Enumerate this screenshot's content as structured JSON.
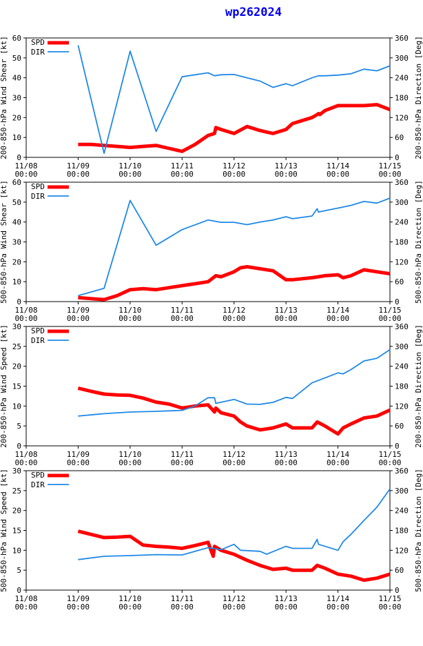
{
  "title": "wp262024",
  "colors": {
    "spd": "#ff0000",
    "dir": "#1e88e5",
    "axis": "#000000",
    "title": "#0000ee"
  },
  "time_ticks": [
    "11/08\n00:00",
    "11/09\n00:00",
    "11/10\n00:00",
    "11/11\n00:00",
    "11/12\n00:00",
    "11/13\n00:00",
    "11/14\n00:00",
    "11/15\n00:00"
  ],
  "legend": {
    "spd": "SPD",
    "dir": "DIR"
  },
  "chart_data": [
    {
      "type": "line",
      "title": "wp262024",
      "x_unit": "days since 11/08 00:00",
      "xlim": [
        0,
        7
      ],
      "ylabel_left": "200-850-hPa Wind Shear [kt]",
      "ylabel_right": "200-850-hPa Direction [Deg]",
      "ylim_left": [
        0,
        60
      ],
      "yticks_left": [
        0,
        10,
        20,
        30,
        40,
        50,
        60
      ],
      "ylim_right": [
        0,
        360
      ],
      "yticks_right": [
        0,
        60,
        120,
        180,
        240,
        300,
        360
      ],
      "series": [
        {
          "name": "SPD",
          "axis": "left",
          "x": [
            1.0,
            1.25,
            1.5,
            1.75,
            2.0,
            2.25,
            2.5,
            2.75,
            3.0,
            3.25,
            3.5,
            3.625,
            3.65,
            3.75,
            4.0,
            4.25,
            4.5,
            4.75,
            5.0,
            5.125,
            5.5,
            5.6,
            5.625,
            5.65,
            5.75,
            6.0,
            6.25,
            6.5,
            6.75,
            7.0
          ],
          "y": [
            6.5,
            6.5,
            6,
            5.5,
            5,
            5.5,
            6,
            4.5,
            3,
            6.5,
            11,
            12,
            15,
            14,
            12,
            15.5,
            13.5,
            12,
            14,
            17,
            20,
            21.5,
            22,
            21.5,
            23.5,
            26,
            26,
            26,
            26.5,
            24
          ]
        },
        {
          "name": "DIR",
          "axis": "right",
          "x": [
            1.0,
            1.5,
            2.0,
            2.5,
            3.0,
            3.5,
            3.625,
            3.75,
            4.0,
            4.25,
            4.5,
            4.75,
            5.0,
            5.125,
            5.5,
            5.625,
            5.75,
            6.0,
            6.25,
            6.5,
            6.75,
            7.0
          ],
          "y": [
            338,
            12,
            320,
            78,
            243,
            255,
            246,
            249,
            250,
            240,
            230,
            211,
            222,
            216,
            240,
            246,
            246,
            248,
            252,
            266,
            261,
            276
          ]
        }
      ]
    },
    {
      "type": "line",
      "x_unit": "days since 11/08 00:00",
      "xlim": [
        0,
        7
      ],
      "ylabel_left": "500-850-hPa Wind Shear [kt]",
      "ylabel_right": "500-850-hPa Direction [Deg]",
      "ylim_left": [
        0,
        60
      ],
      "yticks_left": [
        0,
        10,
        20,
        30,
        40,
        50,
        60
      ],
      "ylim_right": [
        0,
        360
      ],
      "yticks_right": [
        0,
        60,
        120,
        180,
        240,
        300,
        360
      ],
      "series": [
        {
          "name": "SPD",
          "axis": "left",
          "x": [
            1.0,
            1.25,
            1.5,
            1.75,
            2.0,
            2.25,
            2.5,
            2.75,
            3.0,
            3.25,
            3.5,
            3.625,
            3.65,
            3.75,
            4.0,
            4.125,
            4.25,
            4.5,
            4.75,
            5.0,
            5.125,
            5.5,
            5.625,
            5.75,
            6.0,
            6.1,
            6.25,
            6.5,
            6.75,
            7.0
          ],
          "y": [
            2,
            1.5,
            1,
            3,
            6,
            6.5,
            6,
            7,
            8,
            9,
            10,
            12.5,
            13,
            12.5,
            15,
            17,
            17.5,
            16.5,
            15.5,
            11,
            11,
            12,
            12.5,
            13,
            13.5,
            12,
            13,
            16,
            15,
            14
          ]
        },
        {
          "name": "DIR",
          "axis": "right",
          "x": [
            1.0,
            1.5,
            2.0,
            2.5,
            3.0,
            3.5,
            3.75,
            4.0,
            4.25,
            4.5,
            4.75,
            5.0,
            5.125,
            5.5,
            5.6,
            5.625,
            5.75,
            6.0,
            6.25,
            6.5,
            6.75,
            7.0
          ],
          "y": [
            18,
            40,
            305,
            170,
            217,
            246,
            239,
            239,
            232,
            240,
            246,
            256,
            250,
            258,
            280,
            270,
            274,
            282,
            290,
            302,
            297,
            312
          ]
        }
      ]
    },
    {
      "type": "line",
      "x_unit": "days since 11/08 00:00",
      "xlim": [
        0,
        7
      ],
      "ylabel_left": "200-850-hPa Wind Speed [kt]",
      "ylabel_right": "200-850-hPa Direction [Deg]",
      "ylim_left": [
        0,
        30
      ],
      "yticks_left": [
        0,
        5,
        10,
        15,
        20,
        25,
        30
      ],
      "ylim_right": [
        0,
        360
      ],
      "yticks_right": [
        0,
        60,
        120,
        180,
        240,
        300,
        360
      ],
      "series": [
        {
          "name": "SPD",
          "axis": "left",
          "x": [
            1.0,
            1.25,
            1.5,
            1.75,
            2.0,
            2.25,
            2.5,
            2.75,
            3.0,
            3.25,
            3.5,
            3.625,
            3.65,
            3.75,
            4.0,
            4.125,
            4.25,
            4.5,
            4.75,
            5.0,
            5.125,
            5.5,
            5.6,
            5.75,
            6.0,
            6.1,
            6.25,
            6.5,
            6.75,
            7.0
          ],
          "y": [
            14.5,
            13.7,
            13,
            12.8,
            12.7,
            12,
            11,
            10.5,
            9.5,
            10,
            10.3,
            8.5,
            9.5,
            8.3,
            7.5,
            6,
            5,
            4,
            4.5,
            5.5,
            4.5,
            4.5,
            6,
            5,
            3,
            4.5,
            5.5,
            7,
            7.5,
            9
          ]
        },
        {
          "name": "DIR",
          "axis": "right",
          "x": [
            1.0,
            1.5,
            2.0,
            2.5,
            3.0,
            3.25,
            3.5,
            3.625,
            3.65,
            4.0,
            4.25,
            4.5,
            4.75,
            5.0,
            5.125,
            5.5,
            6.0,
            6.1,
            6.25,
            6.5,
            6.75,
            7.0
          ],
          "y": [
            90,
            97,
            102,
            104,
            107,
            120,
            145,
            145,
            128,
            140,
            126,
            125,
            131,
            146,
            143,
            190,
            220,
            217,
            230,
            256,
            264,
            290
          ]
        }
      ]
    },
    {
      "type": "line",
      "x_unit": "days since 11/08 00:00",
      "xlim": [
        0,
        7
      ],
      "ylabel_left": "500-850-hPa Wind Speed [kt]",
      "ylabel_right": "500-850-hPa Direction [Deg]",
      "ylim_left": [
        0,
        30
      ],
      "yticks_left": [
        0,
        5,
        10,
        15,
        20,
        25,
        30
      ],
      "ylim_right": [
        0,
        360
      ],
      "yticks_right": [
        0,
        60,
        120,
        180,
        240,
        300,
        360
      ],
      "series": [
        {
          "name": "SPD",
          "axis": "left",
          "x": [
            1.0,
            1.25,
            1.5,
            1.75,
            2.0,
            2.25,
            2.5,
            2.75,
            3.0,
            3.25,
            3.5,
            3.6,
            3.625,
            3.75,
            4.0,
            4.25,
            4.5,
            4.75,
            5.0,
            5.125,
            5.5,
            5.6,
            5.75,
            6.0,
            6.25,
            6.5,
            6.75,
            7.0
          ],
          "y": [
            14.8,
            14,
            13.2,
            13.3,
            13.5,
            11.3,
            11,
            10.8,
            10.5,
            11.2,
            12,
            8.5,
            11,
            10,
            9,
            7.5,
            6.2,
            5.2,
            5.5,
            5,
            5,
            6.2,
            5.5,
            4,
            3.5,
            2.5,
            3,
            4
          ]
        },
        {
          "name": "DIR",
          "axis": "right",
          "x": [
            1.0,
            1.5,
            2.0,
            2.5,
            3.0,
            3.5,
            3.75,
            4.0,
            4.125,
            4.5,
            4.6,
            4.625,
            5.0,
            5.125,
            5.5,
            5.6,
            5.625,
            6.0,
            6.1,
            6.25,
            6.5,
            6.75,
            7.0
          ],
          "y": [
            92,
            102,
            104,
            107,
            106,
            128,
            122,
            138,
            120,
            117,
            110,
            108,
            132,
            126,
            126,
            153,
            138,
            120,
            146,
            168,
            210,
            250,
            305
          ]
        }
      ]
    }
  ]
}
